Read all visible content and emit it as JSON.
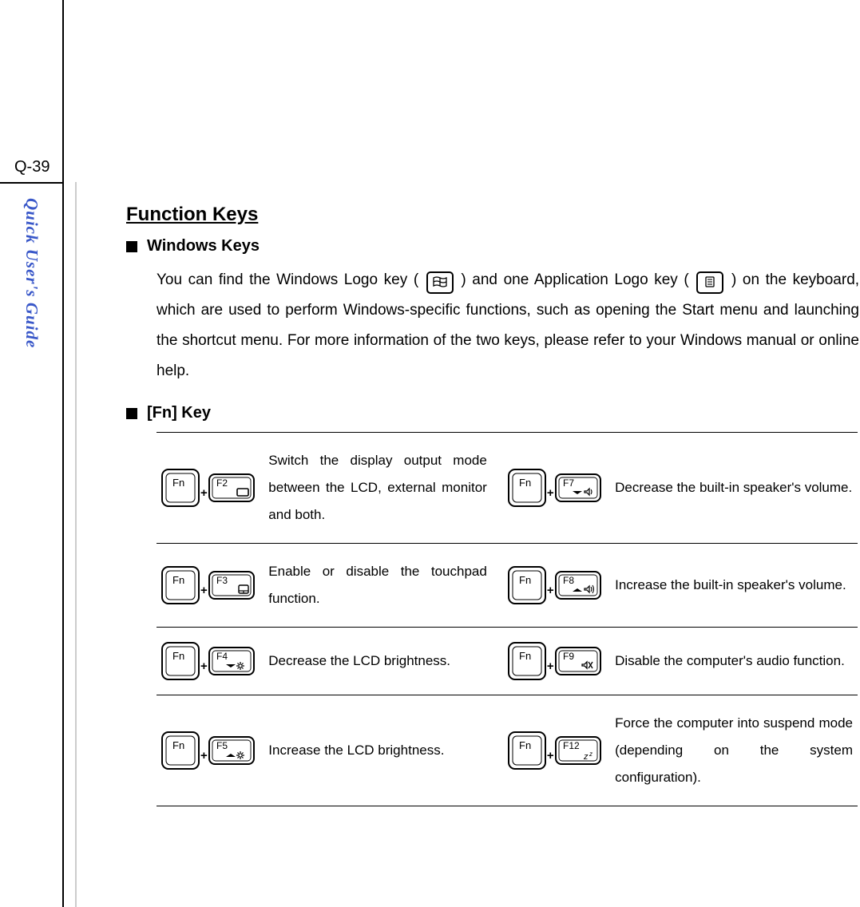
{
  "page_number": "Q-39",
  "sidebar_label": "Quick User's Guide",
  "heading": "Function Keys",
  "section_windows": {
    "title": "Windows Keys",
    "text_before_winkey": "You can find the Windows Logo key (",
    "text_between": ") and one Application Logo key (",
    "text_after": ") on the keyboard, which are used to perform Windows-specific functions, such as opening the Start menu and launching the shortcut menu.   For more information of the two keys, please refer to your Windows manual or online help."
  },
  "section_fn": {
    "title": "[Fn] Key",
    "rows": [
      {
        "left_fkey": "F2",
        "left_icon": "display",
        "left_desc": "Switch the display output mode between the LCD, external monitor and both.",
        "right_fkey": "F7",
        "right_icon": "vol-down",
        "right_desc": "Decrease the built-in speaker's volume."
      },
      {
        "left_fkey": "F3",
        "left_icon": "touchpad",
        "left_desc": "Enable or disable the touchpad function.",
        "right_fkey": "F8",
        "right_icon": "vol-up",
        "right_desc": "Increase the built-in speaker's volume."
      },
      {
        "left_fkey": "F4",
        "left_icon": "bright-down",
        "left_desc": "Decrease the LCD brightness.",
        "right_fkey": "F9",
        "right_icon": "mute",
        "right_desc": "Disable the computer's audio function."
      },
      {
        "left_fkey": "F5",
        "left_icon": "bright-up",
        "left_desc": "Increase the LCD brightness.",
        "right_fkey": "F12",
        "right_icon": "sleep",
        "right_desc": "Force the computer into suspend mode (depending on the system configuration)."
      }
    ]
  },
  "key_labels": {
    "fn": "Fn"
  },
  "colors": {
    "sidebar_text": "#3a58c9",
    "divider": "#000000",
    "inner_divider": "#cccccc",
    "text": "#000000",
    "background": "#ffffff"
  }
}
